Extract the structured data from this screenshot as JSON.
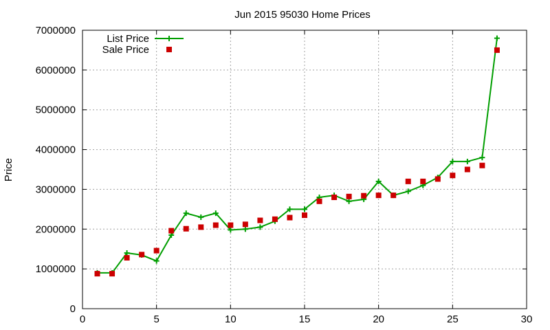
{
  "chart_data": {
    "type": "line",
    "title": "Jun 2015 95030 Home Prices",
    "xlabel": "",
    "ylabel": "Price",
    "xlim": [
      0,
      30
    ],
    "ylim": [
      0,
      7000000
    ],
    "x_ticks": [
      0,
      5,
      10,
      15,
      20,
      25,
      30
    ],
    "y_ticks": [
      0,
      1000000,
      2000000,
      3000000,
      4000000,
      5000000,
      6000000,
      7000000
    ],
    "grid": true,
    "legend_position": "top-left",
    "series": [
      {
        "name": "List Price",
        "style": "line-with-plus-markers",
        "color": "#009e00",
        "x": [
          1,
          2,
          3,
          4,
          5,
          6,
          7,
          8,
          9,
          10,
          11,
          12,
          13,
          14,
          15,
          16,
          17,
          18,
          19,
          20,
          21,
          22,
          23,
          24,
          25,
          26,
          27,
          28
        ],
        "values": [
          900000,
          900000,
          1400000,
          1350000,
          1200000,
          1850000,
          2400000,
          2300000,
          2400000,
          1980000,
          2000000,
          2050000,
          2200000,
          2500000,
          2500000,
          2800000,
          2850000,
          2700000,
          2750000,
          3200000,
          2850000,
          2950000,
          3100000,
          3300000,
          3700000,
          3700000,
          3800000,
          6800000
        ]
      },
      {
        "name": "Sale Price",
        "style": "square-points",
        "color": "#cc0000",
        "x": [
          1,
          2,
          3,
          4,
          5,
          6,
          7,
          8,
          9,
          10,
          11,
          12,
          13,
          14,
          15,
          16,
          17,
          18,
          19,
          20,
          21,
          22,
          23,
          24,
          25,
          26,
          27,
          28
        ],
        "values": [
          880000,
          880000,
          1280000,
          1360000,
          1460000,
          1960000,
          2010000,
          2050000,
          2100000,
          2100000,
          2120000,
          2220000,
          2250000,
          2290000,
          2350000,
          2700000,
          2800000,
          2820000,
          2840000,
          2850000,
          2850000,
          3200000,
          3200000,
          3260000,
          3350000,
          3500000,
          3600000,
          6500000
        ]
      }
    ]
  }
}
